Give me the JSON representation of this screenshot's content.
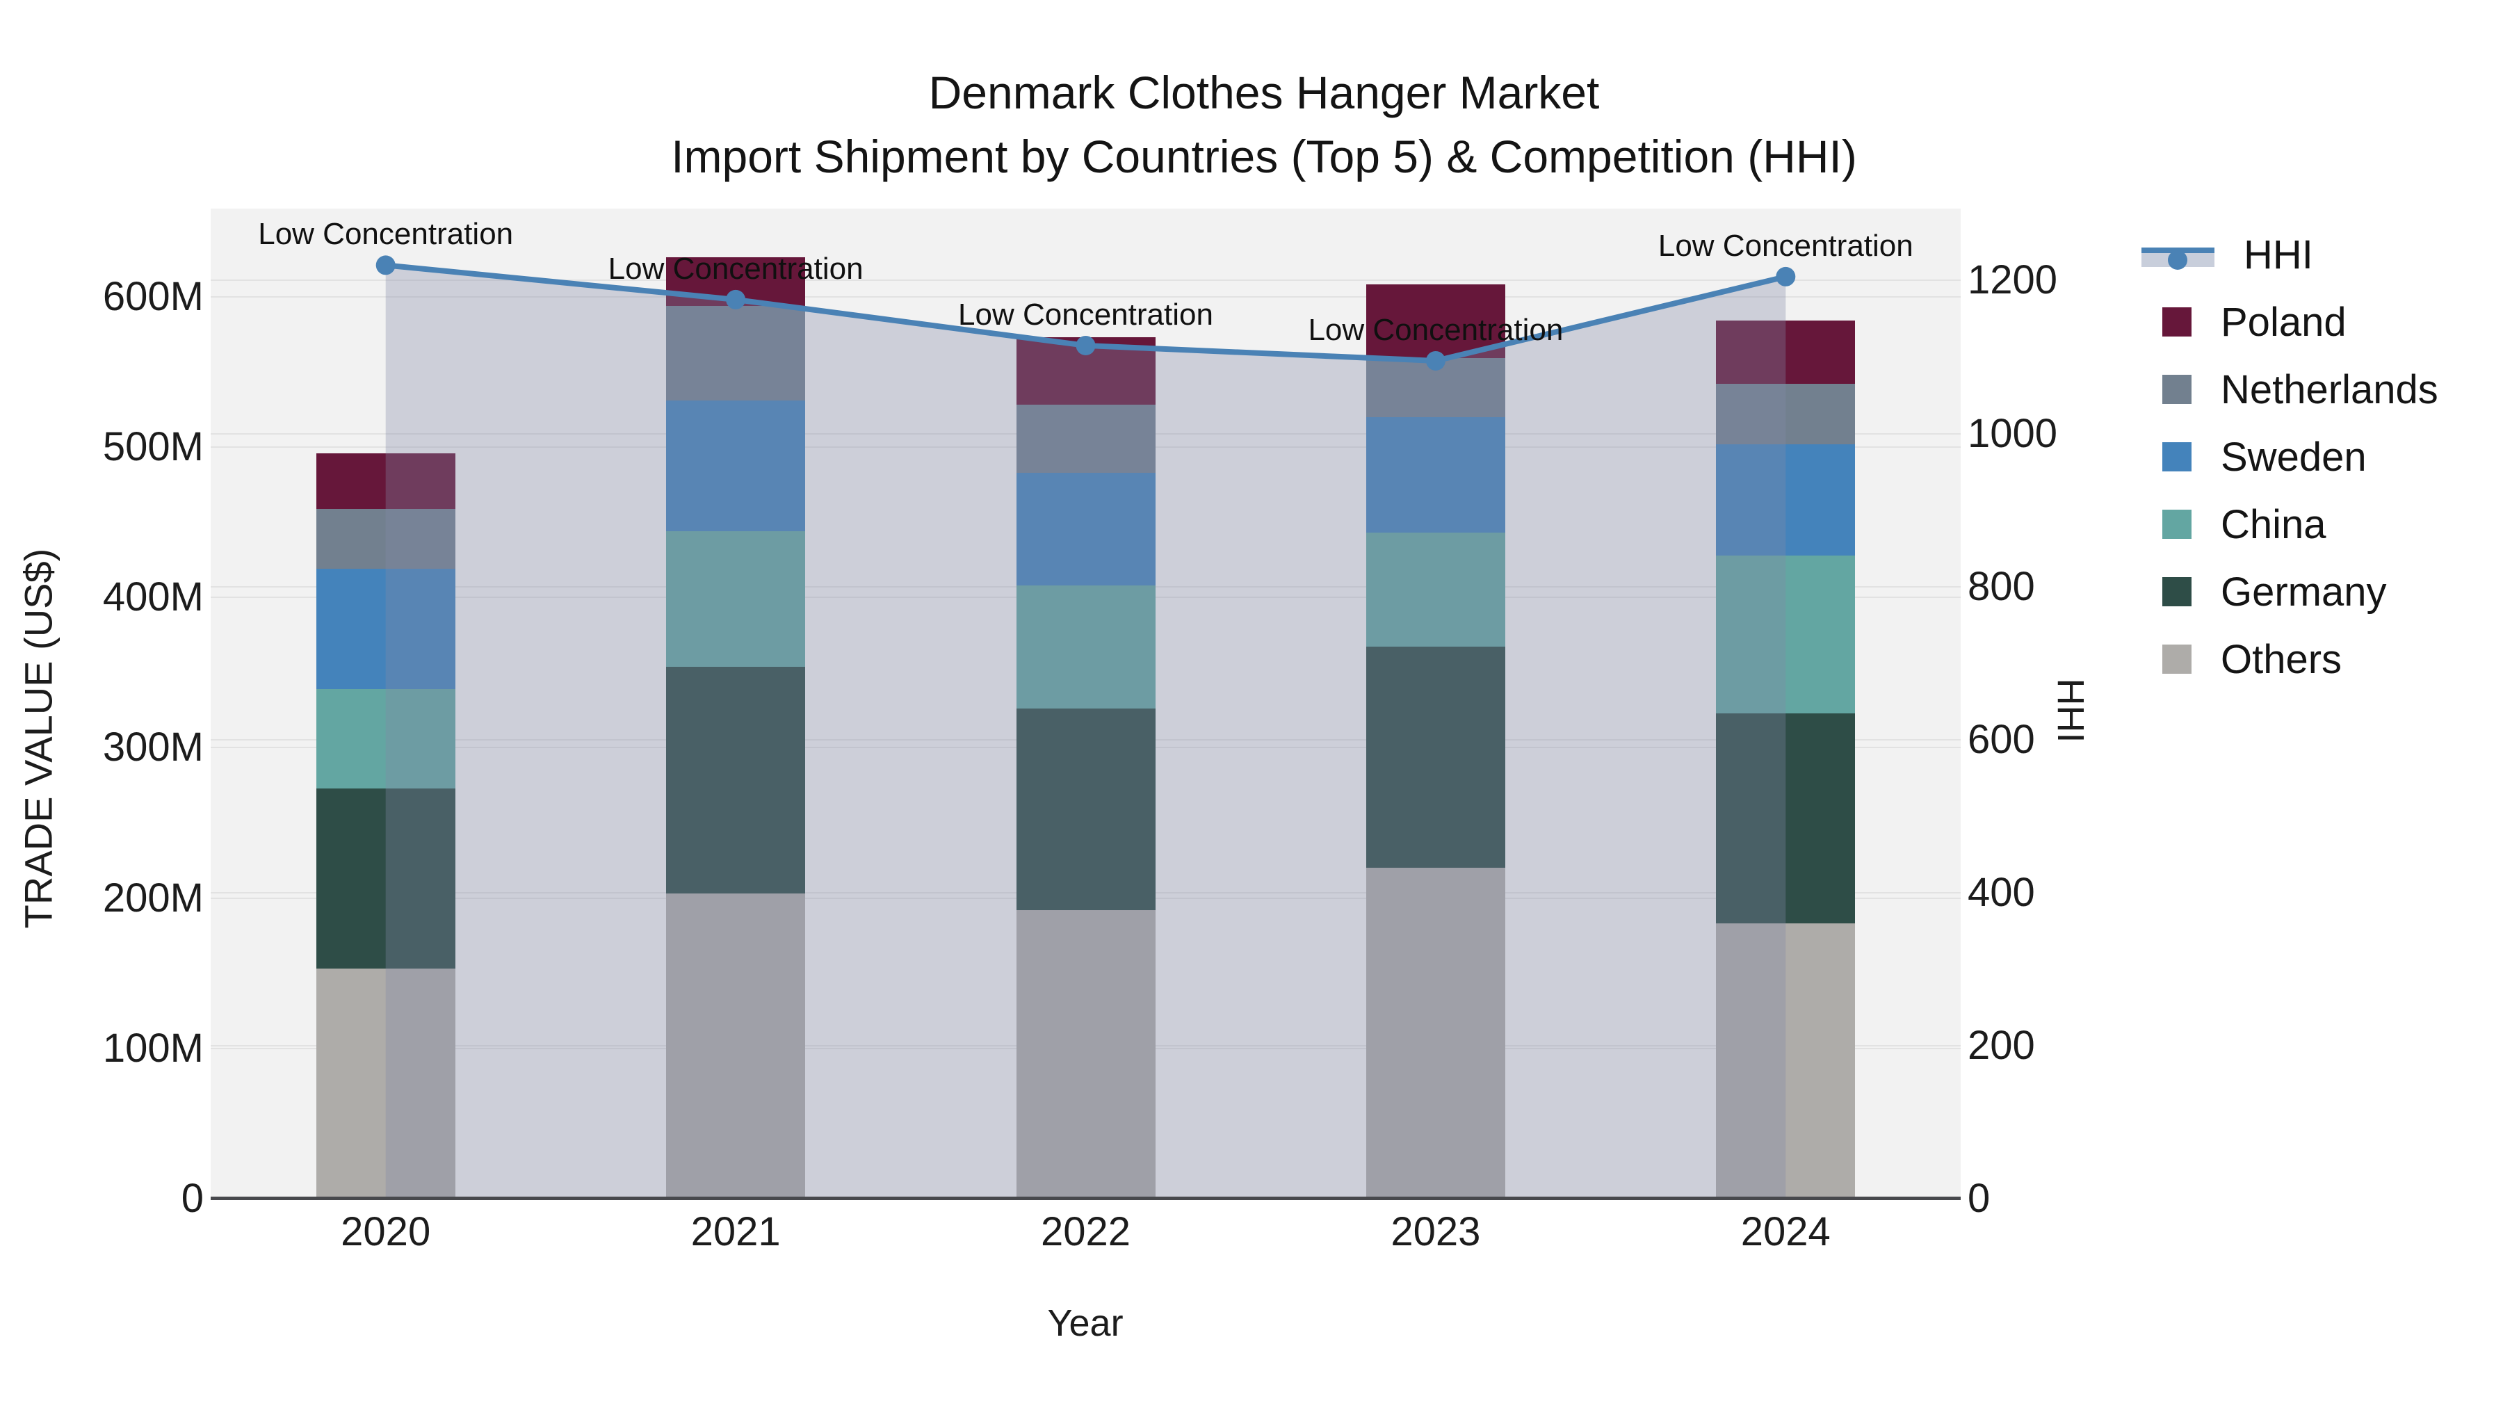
{
  "title": {
    "line1": "Denmark Clothes Hanger Market",
    "line2": "Import Shipment by Countries (Top 5) & Competition (HHI)"
  },
  "x_axis": {
    "title": "Year",
    "tick_labels": [
      "2020",
      "2021",
      "2022",
      "2023",
      "2024"
    ]
  },
  "y_axis_left": {
    "title": "TRADE VALUE (US$)",
    "tick_labels": [
      "0",
      "100M",
      "200M",
      "300M",
      "400M",
      "500M",
      "600M"
    ],
    "tick_values": [
      0,
      100,
      200,
      300,
      400,
      500,
      600
    ],
    "max_value": 600
  },
  "y_axis_right": {
    "title": "HHI",
    "tick_labels": [
      "0",
      "200",
      "400",
      "600",
      "800",
      "1000",
      "1200"
    ],
    "tick_values": [
      0,
      200,
      400,
      600,
      800,
      1000,
      1200
    ],
    "max_value": 1200
  },
  "legend": {
    "items": [
      {
        "label": "HHI",
        "type": "line",
        "color": "#4a82b5"
      },
      {
        "label": "Poland",
        "type": "swatch",
        "color": "#66173a"
      },
      {
        "label": "Netherlands",
        "type": "swatch",
        "color": "#72808f"
      },
      {
        "label": "Sweden",
        "type": "swatch",
        "color": "#4483bb"
      },
      {
        "label": "China",
        "type": "swatch",
        "color": "#63a6a2"
      },
      {
        "label": "Germany",
        "type": "swatch",
        "color": "#2e4d47"
      },
      {
        "label": "Others",
        "type": "swatch",
        "color": "#aeaca9"
      }
    ]
  },
  "chart_data": {
    "type": [
      "stacked-bar",
      "line"
    ],
    "title": "Denmark Clothes Hanger Market — Import Shipment by Countries (Top 5) & Competition (HHI)",
    "xlabel": "Year",
    "ylabel_left": "TRADE VALUE (US$)",
    "ylabel_right": "HHI",
    "categories": [
      "2020",
      "2021",
      "2022",
      "2023",
      "2024"
    ],
    "bar_unit": "US$ millions",
    "stack_order_bottom_to_top": [
      "Others",
      "Germany",
      "China",
      "Sweden",
      "Netherlands",
      "Poland"
    ],
    "series": [
      {
        "name": "Poland",
        "color": "#66173a",
        "values": [
          37,
          32,
          45,
          49,
          42
        ]
      },
      {
        "name": "Netherlands",
        "color": "#72808f",
        "values": [
          40,
          63,
          45,
          39,
          40
        ]
      },
      {
        "name": "Sweden",
        "color": "#4483bb",
        "values": [
          80,
          87,
          75,
          77,
          74
        ]
      },
      {
        "name": "China",
        "color": "#63a6a2",
        "values": [
          66,
          90,
          82,
          76,
          105
        ]
      },
      {
        "name": "Germany",
        "color": "#2e4d47",
        "values": [
          120,
          151,
          134,
          147,
          140
        ]
      },
      {
        "name": "Others",
        "color": "#aeaca9",
        "values": [
          153,
          203,
          192,
          220,
          183
        ]
      }
    ],
    "bar_totals": [
      496,
      626,
      573,
      608,
      584
    ],
    "hhi_line": {
      "name": "HHI",
      "color": "#4a82b5",
      "area_fill": "rgba(130,137,166,0.33)",
      "values": [
        1220,
        1175,
        1115,
        1095,
        1205
      ]
    },
    "annotations": [
      {
        "text": "Low Concentration",
        "category": "2020"
      },
      {
        "text": "Low Concentration",
        "category": "2021"
      },
      {
        "text": "Low Concentration",
        "category": "2022"
      },
      {
        "text": "Low Concentration",
        "category": "2023"
      },
      {
        "text": "Low Concentration",
        "category": "2024"
      }
    ],
    "ylim_left": [
      0,
      600
    ],
    "ylim_right": [
      0,
      1200
    ],
    "grid": true,
    "legend_position": "right"
  }
}
